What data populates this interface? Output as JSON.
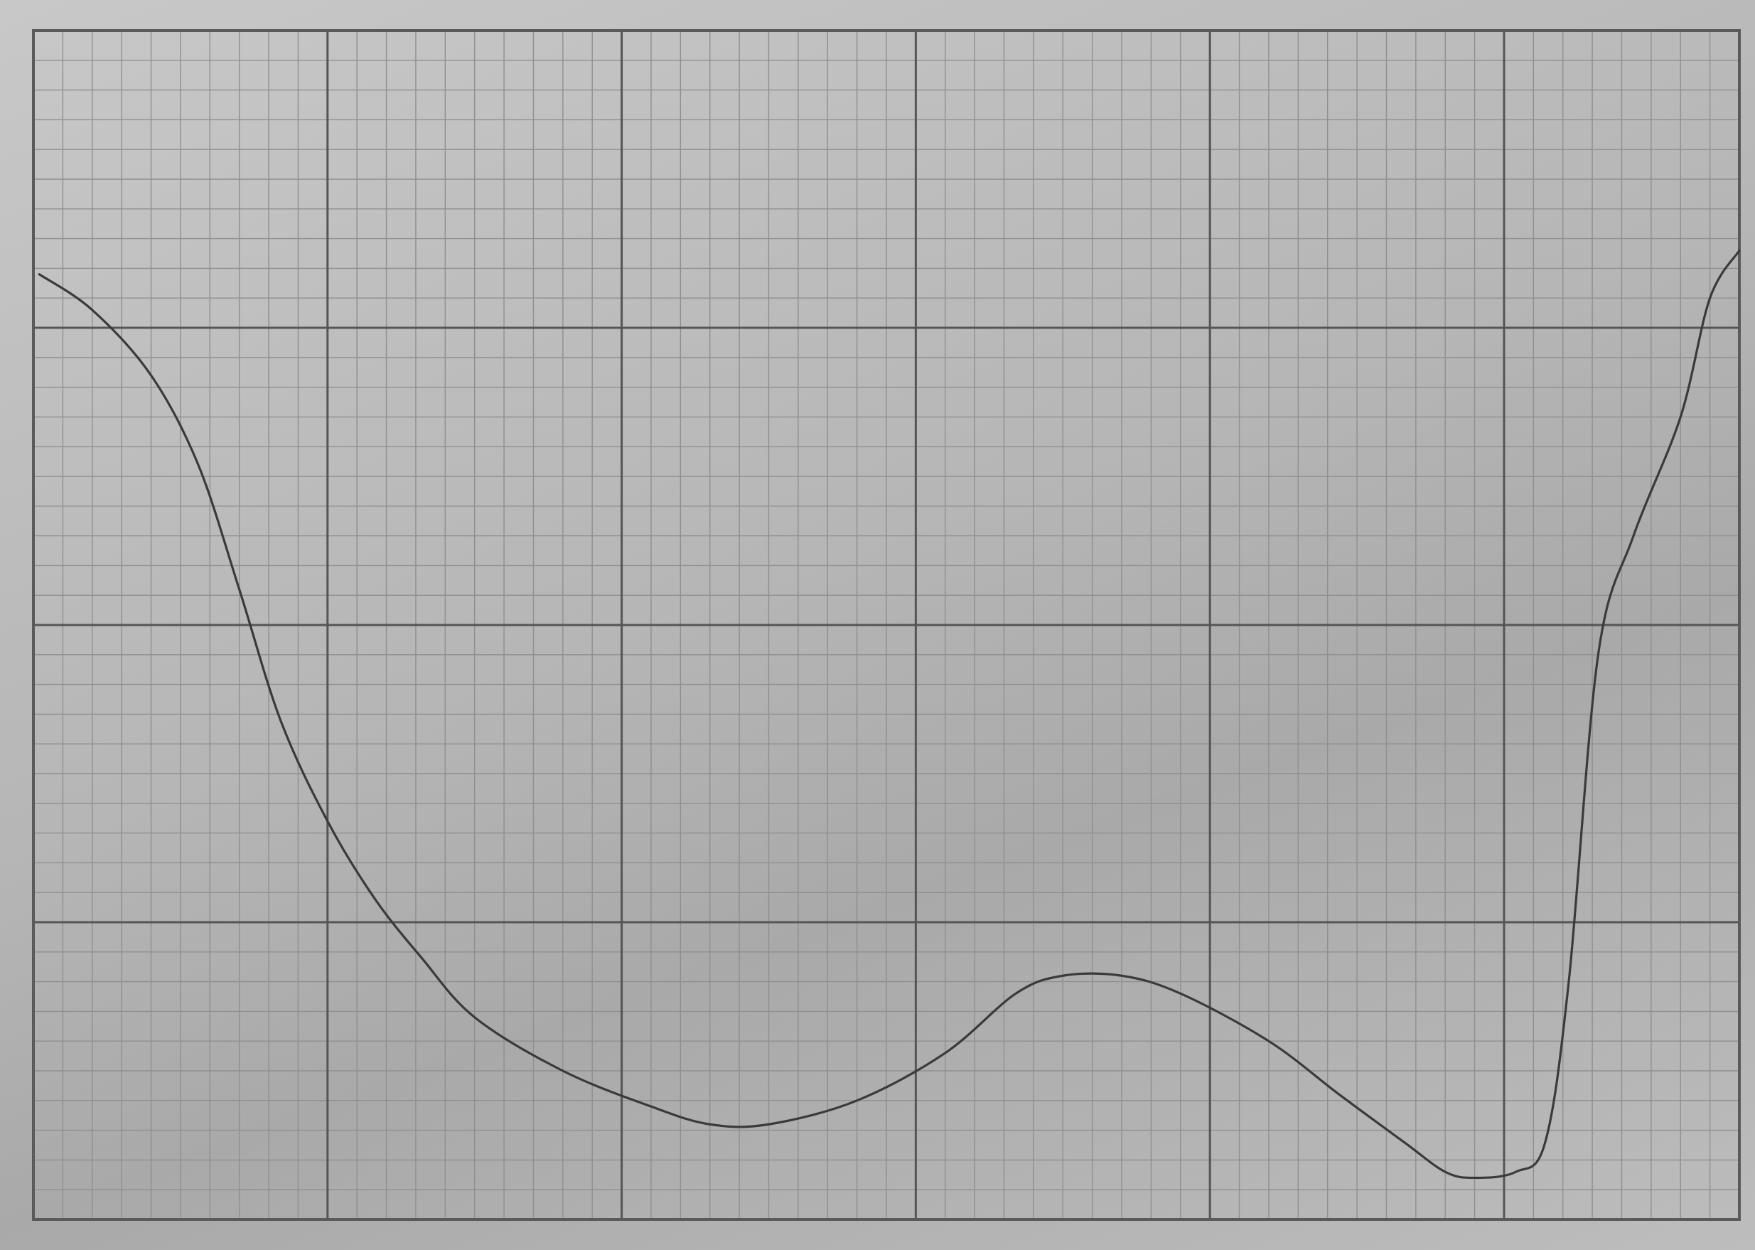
{
  "chart_data": {
    "type": "line",
    "title": "",
    "xlabel": "",
    "ylabel": "",
    "xlim": [
      0,
      290
    ],
    "ylim": [
      0,
      200
    ],
    "grid": {
      "major_step_x": 50,
      "major_step_y": 50,
      "minor_step": 5
    },
    "series": [
      {
        "points": [
          [
            1,
            159
          ],
          [
            10,
            153
          ],
          [
            20,
            142
          ],
          [
            28,
            127
          ],
          [
            35,
            106
          ],
          [
            42,
            84
          ],
          [
            50,
            67
          ],
          [
            58,
            54
          ],
          [
            66,
            44
          ],
          [
            75,
            34
          ],
          [
            90,
            25
          ],
          [
            105,
            19
          ],
          [
            115,
            16
          ],
          [
            125,
            16
          ],
          [
            140,
            20
          ],
          [
            155,
            28
          ],
          [
            167,
            38
          ],
          [
            175,
            41
          ],
          [
            185,
            41
          ],
          [
            195,
            38
          ],
          [
            210,
            30
          ],
          [
            222,
            21
          ],
          [
            233,
            13
          ],
          [
            240,
            8
          ],
          [
            245,
            7
          ],
          [
            252,
            8
          ],
          [
            257,
            13
          ],
          [
            261,
            40
          ],
          [
            266,
            95
          ],
          [
            272,
            115
          ],
          [
            280,
            135
          ],
          [
            285,
            155
          ],
          [
            290,
            163
          ]
        ]
      }
    ],
    "colors": {
      "paper": "#b9b9b9",
      "minor_grid": "#8f8f8f",
      "major_grid": "#555555",
      "curve": "#3a3a3a"
    }
  }
}
